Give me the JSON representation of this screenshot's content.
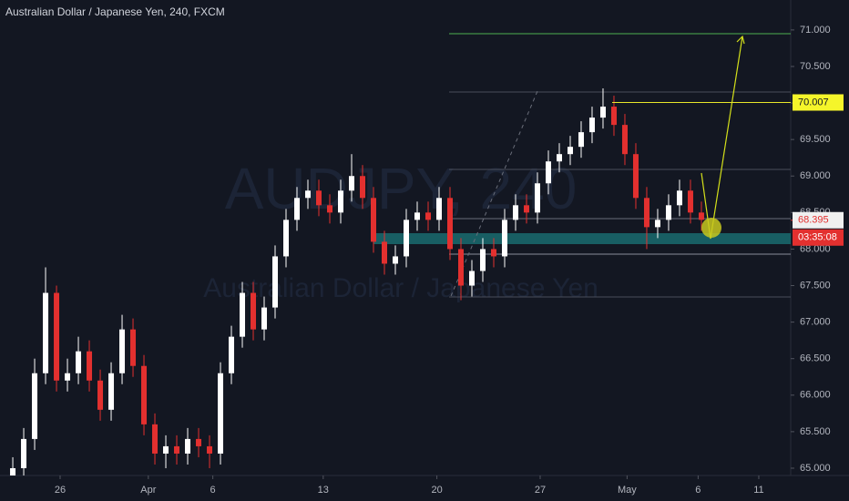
{
  "chart_data": {
    "type": "candlestick",
    "title": "Australian Dollar / Japanese Yen, 240, FXCM",
    "watermark": [
      "AUDJPY, 240",
      "Australian Dollar / Japanese Yen"
    ],
    "up_color": "#ffffff",
    "down_color": "#e3302f",
    "open": [
      64.9,
      65.0,
      65.4,
      66.3,
      67.4,
      66.2,
      66.3,
      66.6,
      66.2,
      65.8,
      66.3,
      66.9,
      66.4,
      65.6,
      65.2,
      65.3,
      65.2,
      65.4,
      65.3,
      65.2,
      66.3,
      66.8,
      67.4,
      66.9,
      67.2,
      67.9,
      68.4,
      68.7,
      68.8,
      68.6,
      68.5,
      68.8,
      69.0,
      68.7,
      68.1,
      67.8,
      67.9,
      68.4,
      68.5,
      68.4,
      68.7,
      68.0,
      67.5,
      67.7,
      68.0,
      67.9,
      68.4,
      68.6,
      68.5,
      68.9,
      69.2,
      69.3,
      69.4,
      69.6,
      69.8,
      69.95,
      69.7,
      69.3,
      68.7,
      68.3,
      68.4,
      68.6,
      68.8,
      68.5
    ],
    "high": [
      65.15,
      65.55,
      66.5,
      67.75,
      67.5,
      66.5,
      66.8,
      66.75,
      66.35,
      66.45,
      67.1,
      67.05,
      66.55,
      65.75,
      65.45,
      65.45,
      65.55,
      65.55,
      65.45,
      66.45,
      66.95,
      67.55,
      67.55,
      67.35,
      68.05,
      68.55,
      68.85,
      68.95,
      68.95,
      68.75,
      68.95,
      69.3,
      69.15,
      68.85,
      68.25,
      68.05,
      68.55,
      68.65,
      68.65,
      68.85,
      68.85,
      68.15,
      67.85,
      68.15,
      68.15,
      68.55,
      68.75,
      68.75,
      69.05,
      69.35,
      69.45,
      69.55,
      69.75,
      69.95,
      70.2,
      70.1,
      69.85,
      69.45,
      68.85,
      68.55,
      68.75,
      68.95,
      68.95,
      68.65
    ],
    "low": [
      64.9,
      64.9,
      65.25,
      66.15,
      66.05,
      66.05,
      66.15,
      66.05,
      65.65,
      65.65,
      66.15,
      66.25,
      65.45,
      65.05,
      65.0,
      65.05,
      65.05,
      65.15,
      65.0,
      65.05,
      66.15,
      66.65,
      66.75,
      66.75,
      67.05,
      67.75,
      68.25,
      68.55,
      68.45,
      68.35,
      68.35,
      68.65,
      68.55,
      67.95,
      67.65,
      67.65,
      67.75,
      68.25,
      68.25,
      68.25,
      67.85,
      67.3,
      67.35,
      67.55,
      67.75,
      67.75,
      68.25,
      68.35,
      68.35,
      68.75,
      69.05,
      69.15,
      69.25,
      69.45,
      69.65,
      69.55,
      69.15,
      68.55,
      68.0,
      68.15,
      68.25,
      68.45,
      68.35,
      68.25
    ],
    "close": [
      65.0,
      65.4,
      66.3,
      67.4,
      66.2,
      66.3,
      66.6,
      66.2,
      65.8,
      66.3,
      66.9,
      66.4,
      65.6,
      65.2,
      65.3,
      65.2,
      65.4,
      65.3,
      65.2,
      66.3,
      66.8,
      67.4,
      66.9,
      67.2,
      67.9,
      68.4,
      68.7,
      68.8,
      68.6,
      68.5,
      68.8,
      69.0,
      68.7,
      68.1,
      67.8,
      67.9,
      68.4,
      68.5,
      68.4,
      68.7,
      68.0,
      67.5,
      67.7,
      68.0,
      67.9,
      68.4,
      68.6,
      68.5,
      68.9,
      69.2,
      69.3,
      69.4,
      69.6,
      69.8,
      69.95,
      69.7,
      69.3,
      68.7,
      68.3,
      68.4,
      68.6,
      68.8,
      68.5,
      68.4
    ],
    "xlim": [
      -1.17,
      71.17
    ],
    "xticks": [
      {
        "value": 4.33,
        "label": "26"
      },
      {
        "value": 12.4,
        "label": "Apr"
      },
      {
        "value": 18.3,
        "label": "6"
      },
      {
        "value": 28.4,
        "label": "13"
      },
      {
        "value": 38.8,
        "label": "20"
      },
      {
        "value": 48.25,
        "label": "27"
      },
      {
        "value": 56.2,
        "label": "May"
      },
      {
        "value": 62.7,
        "label": "6"
      },
      {
        "value": 68.25,
        "label": "11"
      }
    ],
    "ylim": [
      64.9,
      71.41
    ],
    "yticks": [
      {
        "value": 65,
        "label": "65.000"
      },
      {
        "value": 65.5,
        "label": "65.500"
      },
      {
        "value": 66,
        "label": "66.000"
      },
      {
        "value": 66.5,
        "label": "66.500"
      },
      {
        "value": 67,
        "label": "67.000"
      },
      {
        "value": 67.5,
        "label": "67.500"
      },
      {
        "value": 68,
        "label": "68.000"
      },
      {
        "value": 68.5,
        "label": "68.500"
      },
      {
        "value": 69,
        "label": "69.000"
      },
      {
        "value": 69.5,
        "label": "69.500"
      },
      {
        "value": 70,
        "label": "70.000"
      },
      {
        "value": 70.5,
        "label": "70.500"
      },
      {
        "value": 71,
        "label": "71.000"
      }
    ],
    "price_line": 70.007,
    "last_price": 68.395,
    "countdown": "03:35:08"
  }
}
